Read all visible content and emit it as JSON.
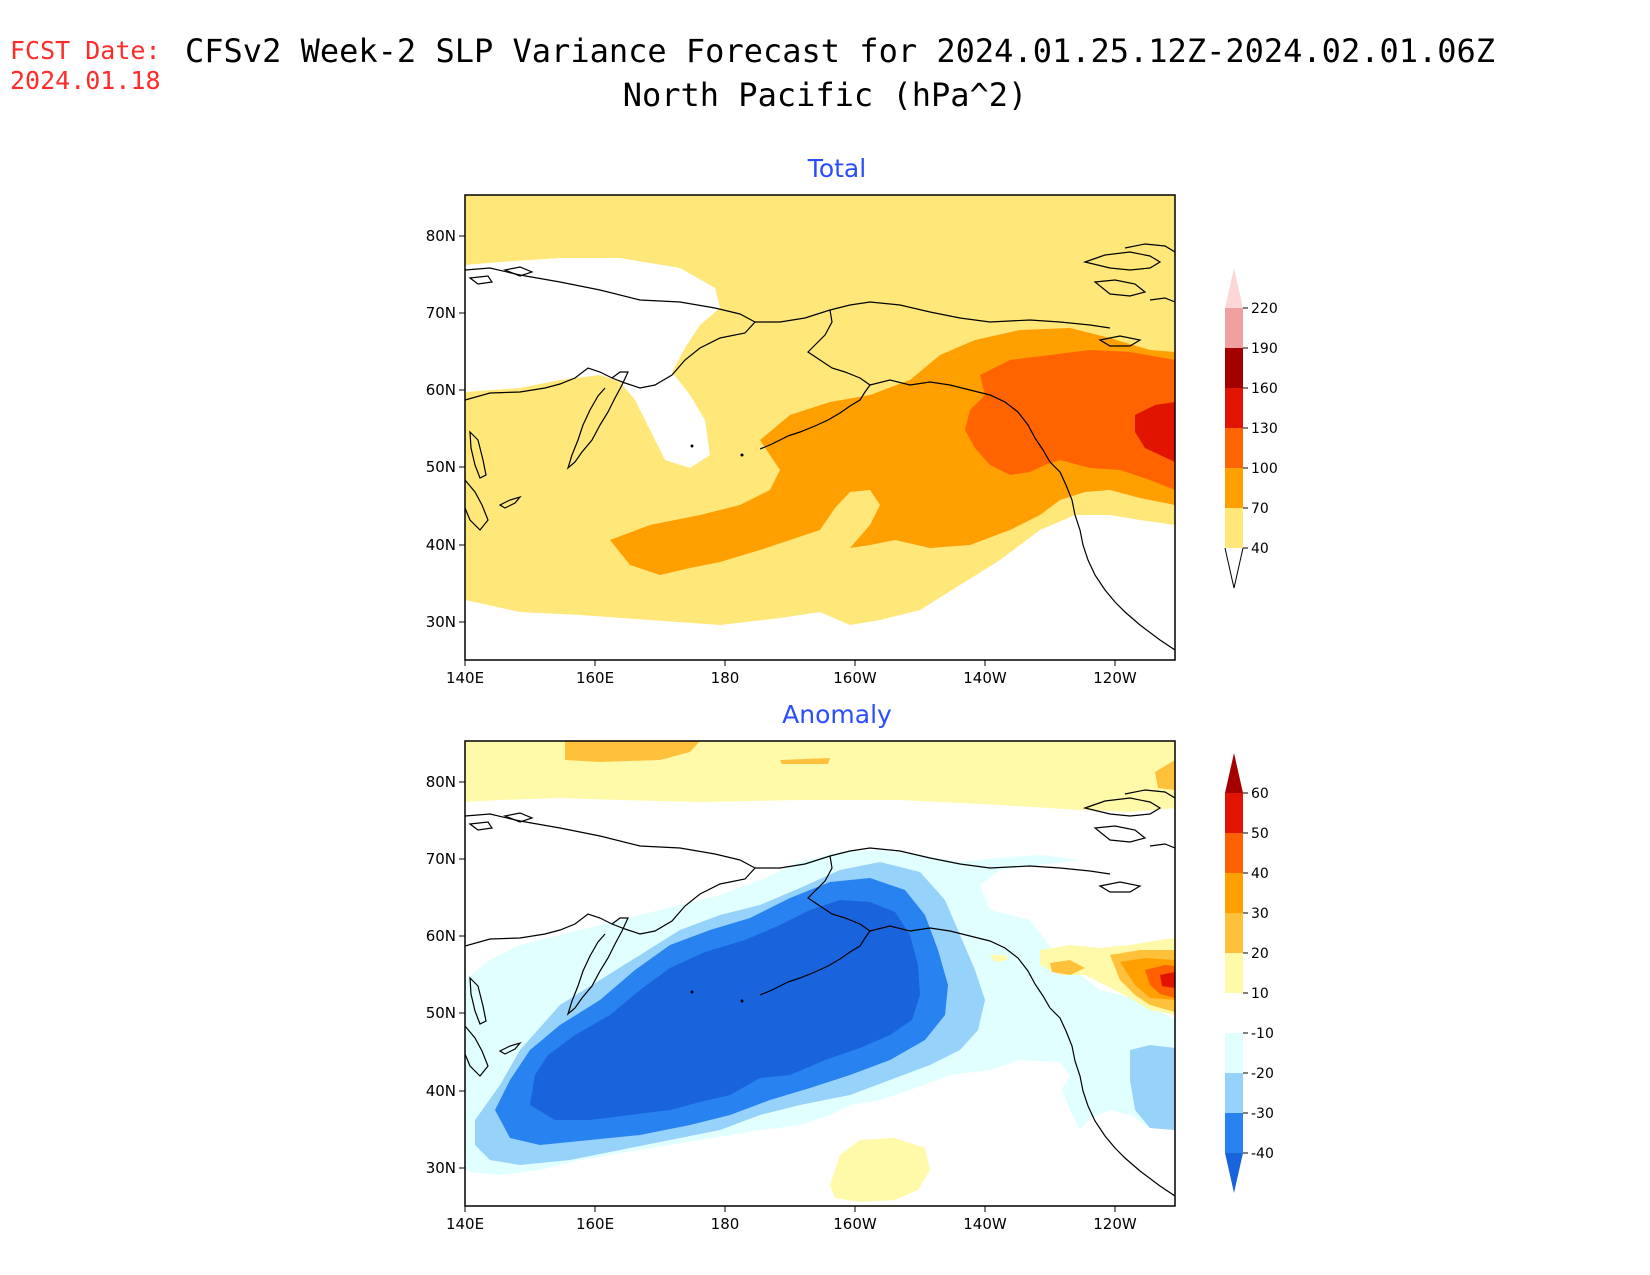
{
  "header": {
    "fcst_label": "FCST Date:",
    "fcst_date": "2024.01.18",
    "title_line1": "CFSv2 Week-2 SLP Variance Forecast for 2024.01.25.12Z-2024.02.01.06Z",
    "title_line2": "North Pacific (hPa^2)"
  },
  "map_axes": {
    "lat_labels": [
      "80N",
      "70N",
      "60N",
      "50N",
      "40N",
      "30N"
    ],
    "lon_labels": [
      "140E",
      "160E",
      "180",
      "160W",
      "140W",
      "120W"
    ]
  },
  "panels": [
    {
      "title": "Total",
      "colorbar": {
        "levels": [
          "40",
          "70",
          "100",
          "130",
          "160",
          "190",
          "220"
        ],
        "colors": [
          "#ffe77a",
          "#ffa000",
          "#ff6400",
          "#e01400",
          "#a50000",
          "#f0a0a0",
          "#fdd7d7"
        ]
      }
    },
    {
      "title": "Anomaly",
      "colorbar": {
        "levels": [
          "-40",
          "-30",
          "-20",
          "-10",
          "10",
          "20",
          "30",
          "40",
          "50",
          "60"
        ],
        "colors": [
          "#1964dc",
          "#2882f0",
          "#96d2fa",
          "#e1ffff",
          "#ffffff",
          "#fffaaa",
          "#ffc03c",
          "#ffa000",
          "#ff6000",
          "#e01400",
          "#a50000"
        ]
      }
    }
  ]
}
